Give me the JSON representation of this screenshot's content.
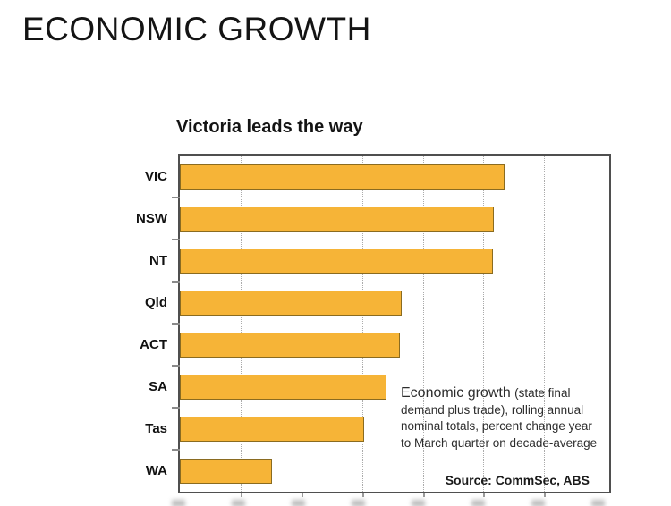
{
  "page": {
    "title": "ECONOMIC GROWTH"
  },
  "chart": {
    "title": "Victoria leads the way",
    "source": "Source: CommSec, ABS",
    "annotation": {
      "lead": "Economic growth ",
      "lines": [
        "(state final",
        "demand plus trade), rolling annual",
        "nominal totals, percent change year",
        "to March quarter on decade-average"
      ]
    }
  },
  "chart_data": {
    "type": "bar",
    "orientation": "horizontal",
    "title": "Victoria leads the way",
    "categories": [
      "VIC",
      "NSW",
      "NT",
      "Qld",
      "ACT",
      "SA",
      "Tas",
      "WA"
    ],
    "values": [
      5.35,
      5.17,
      5.15,
      3.65,
      3.62,
      3.4,
      3.04,
      1.52
    ],
    "value_basis": "estimated from unlabeled gridlines (axis tick labels cropped off bottom of screenshot); one unit = one gridline interval",
    "xlabel": "",
    "ylabel": "",
    "xlim": [
      0,
      7.07
    ],
    "gridlines_x": [
      1,
      2,
      3,
      4,
      5,
      6
    ],
    "grid": "vertical dashed",
    "legend": "none",
    "colors": {
      "bar_fill": "#F6B437",
      "bar_border": "#8A6B20",
      "plot_border": "#4F4F4F",
      "gridline": "#ABABAB"
    }
  }
}
